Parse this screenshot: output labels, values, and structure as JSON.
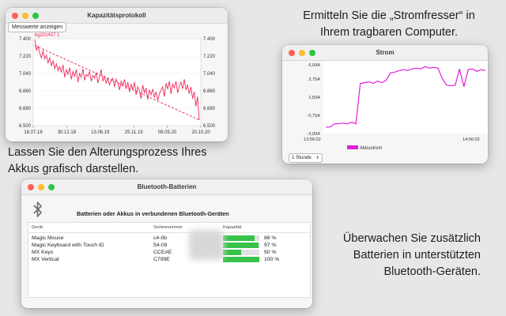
{
  "captions": {
    "top_right_1": "Ermitteln Sie die „Stromfresser“ in",
    "top_right_2": "Ihrem tragbaren Computer.",
    "mid_left_1": "Lassen Sie den Alterungsprozess Ihres",
    "mid_left_2": "Akkus grafisch darstellen.",
    "bottom_right_1": "Überwachen Sie zusätzlich",
    "bottom_right_2": "Batterien in unterstützten",
    "bottom_right_3": "Bluetooth-Geräten."
  },
  "kapazitaet_window": {
    "title": "Kapazitätsprotokoll",
    "button": "Messwerte anzeigen",
    "chart_data": {
      "type": "line",
      "series_label": "bg20z457 1",
      "y_ticks": [
        "7.400",
        "7.220",
        "7.040",
        "6.860",
        "6.680",
        "6.500"
      ],
      "x_ticks": [
        "18.07.18",
        "30.12.18",
        "13.06.19",
        "25.11.19",
        "08.05.20",
        "20.10.20"
      ],
      "ylim": [
        6500,
        7400
      ],
      "x_count": 100,
      "values": [
        7390,
        7280,
        7320,
        7250,
        7200,
        7280,
        7190,
        7230,
        7150,
        7200,
        7120,
        7170,
        7090,
        7140,
        7070,
        7110,
        7050,
        7130,
        7000,
        7080,
        7030,
        7100,
        6980,
        7060,
        7010,
        7080,
        6950,
        7040,
        7000,
        7090,
        6970,
        7030,
        7010,
        7060,
        6960,
        7020,
        6990,
        7050,
        6940,
        7010,
        7080,
        6960,
        7010,
        6940,
        6990,
        6920,
        6970,
        6990,
        6900,
        6980,
        6940,
        6870,
        6960,
        6910,
        6980,
        6880,
        6950,
        6850,
        6930,
        6870,
        6950,
        6820,
        6900,
        6860,
        6780,
        6920,
        6840,
        6890,
        6770,
        6870,
        6820,
        6880,
        6790,
        6850,
        6760,
        6830,
        6870,
        6900,
        6800,
        6940,
        6880,
        6960,
        6830,
        6930,
        6890,
        6960,
        6840,
        6910,
        6950,
        6880,
        6980,
        6870,
        6920,
        6830,
        6900,
        6780,
        6850,
        6700,
        6800,
        6560
      ],
      "trend": [
        7330,
        6560
      ],
      "line_color": "#f0285a"
    }
  },
  "strom_window": {
    "title": "Strom",
    "dropdown": "1 Stunde",
    "chart_data": {
      "type": "line",
      "y_ticks": [
        "6,00A",
        "3,75A",
        "1,50A",
        "-0,75A",
        "-3,00A"
      ],
      "ylim": [
        -3,
        6
      ],
      "x_ticks": [
        "13:56:02",
        "14:56:02"
      ],
      "legend": "Akkustrom",
      "values": [
        -2.2,
        -2.2,
        -1.8,
        -1.8,
        -1.7,
        -1.8,
        -1.6,
        -1.8,
        3.2,
        3.3,
        3.4,
        3.2,
        3.5,
        3.3,
        3.6,
        4.5,
        4.6,
        4.8,
        4.9,
        4.8,
        5.0,
        5.1,
        5.0,
        5.3,
        5.1,
        5.2,
        5.1,
        3.8,
        3.0,
        2.9,
        3.0,
        5.0,
        2.8,
        4.9,
        5.0,
        4.7,
        4.9,
        4.8
      ],
      "line_color": "#e020dc"
    }
  },
  "bt_window": {
    "title": "Bluetooth-Batterien",
    "heading": "Batterien oder Akkus in verbundenen Bluetooth-Geräten",
    "columns": [
      "Gerät",
      "Seriennummer",
      "Kapazität"
    ],
    "rows": [
      {
        "device": "Magic Mouse",
        "serial": "c4-0b",
        "pct": 86,
        "label": "86 %"
      },
      {
        "device": "Magic Keyboard with Touch ID",
        "serial": "54-09",
        "pct": 97,
        "label": "97 %"
      },
      {
        "device": "MX Keys",
        "serial": "CCEAE",
        "pct": 50,
        "label": "50 %"
      },
      {
        "device": "MX Vertical",
        "serial": "C799E",
        "pct": 100,
        "label": "100 %"
      }
    ],
    "bar_color": "#38c24a"
  }
}
